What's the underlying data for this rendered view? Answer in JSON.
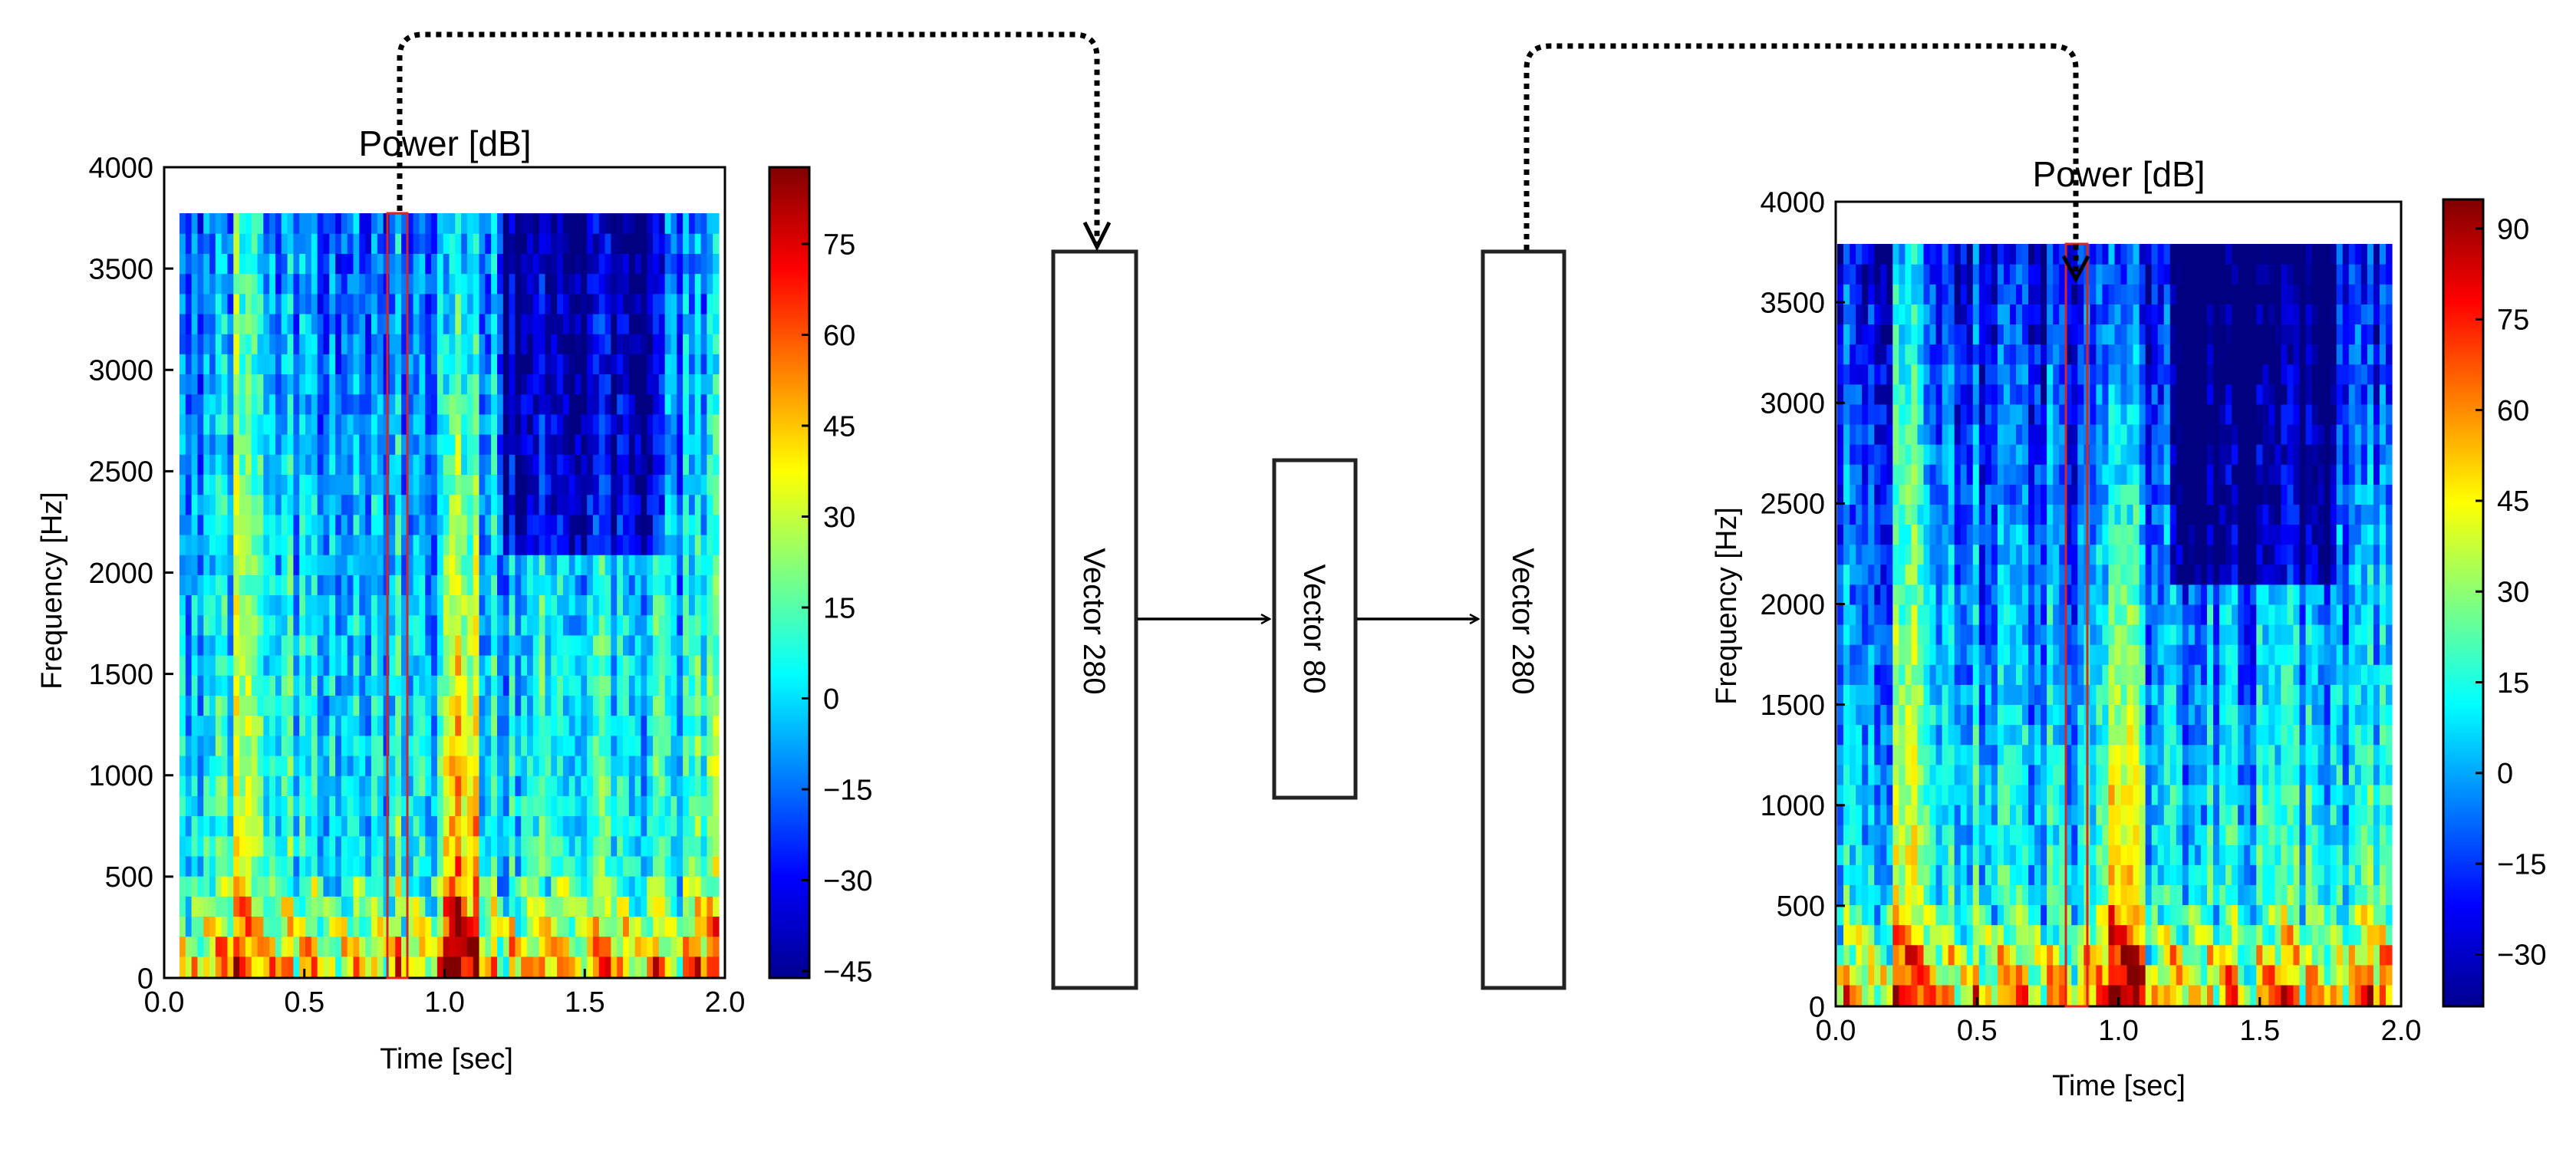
{
  "left_spectrogram": {
    "title": "Power [dB]",
    "xlabel": "Time [sec]",
    "ylabel": "Frequency [Hz]",
    "x_ticks": [
      "0.0",
      "0.5",
      "1.0",
      "1.5",
      "2.0"
    ],
    "y_ticks": [
      "0",
      "500",
      "1000",
      "1500",
      "2000",
      "2500",
      "3000",
      "3500",
      "4000"
    ],
    "colorbar_ticks": [
      "75",
      "60",
      "45",
      "30",
      "15",
      "0",
      "−15",
      "−30",
      "−45"
    ],
    "highlight_time_sec": 0.83
  },
  "right_spectrogram": {
    "title": "Power [dB]",
    "xlabel": "Time [sec]",
    "ylabel": "Frequency [Hz]",
    "x_ticks": [
      "0.0",
      "0.5",
      "1.0",
      "1.5",
      "2.0"
    ],
    "y_ticks": [
      "0",
      "500",
      "1000",
      "1500",
      "2000",
      "2500",
      "3000",
      "3500",
      "4000"
    ],
    "colorbar_ticks": [
      "90",
      "75",
      "60",
      "45",
      "30",
      "15",
      "0",
      "−15",
      "−30"
    ],
    "highlight_time_sec": 0.84
  },
  "network": {
    "input_label": "Vector 280",
    "bottleneck_label": "Vector 80",
    "output_label": "Vector 280"
  }
}
